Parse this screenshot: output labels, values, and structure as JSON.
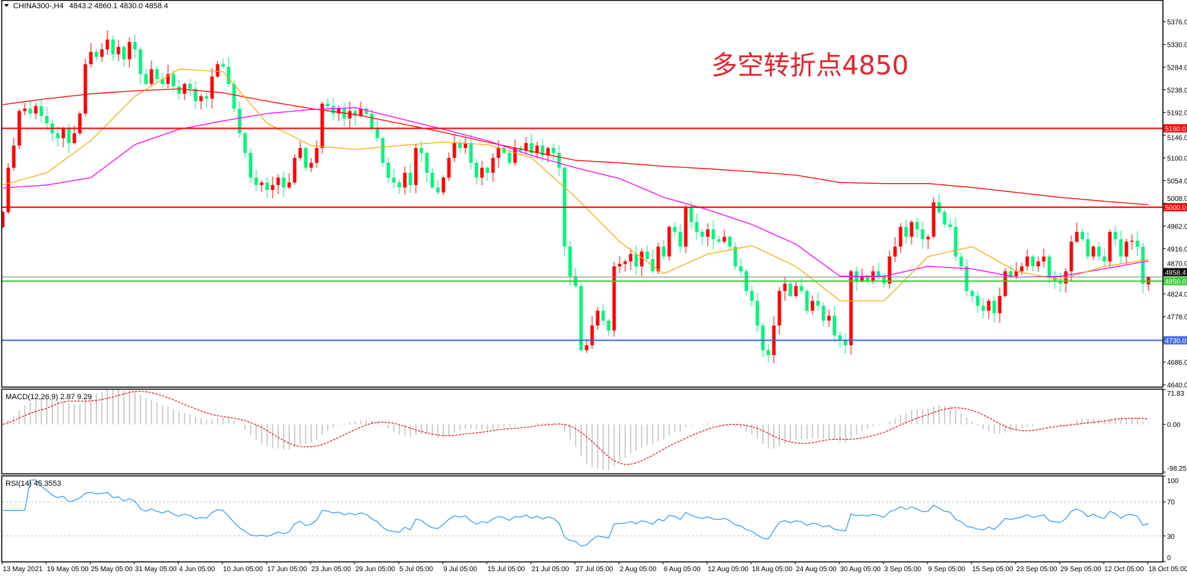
{
  "header": {
    "symbol": "CHINA300-,H4",
    "ohlc": "4843.2 4860.1 4830.0 4858.4",
    "menu_icon": "triangle-down-icon"
  },
  "annotation": {
    "text": "多空转折点4850",
    "color": "#e8222a"
  },
  "colors": {
    "up_candle": "#ff0000",
    "down_candle": "#00f57a",
    "ma_fast": "#ffa500",
    "ma_mid": "#ff00ff",
    "ma_slow": "#ff0000",
    "macd_hist": "#c0c0c0",
    "macd_signal": "#ff0000",
    "rsi": "#1e90ff",
    "bid_line": "#808080"
  },
  "chart_data": [
    {
      "type": "candlestick",
      "timeframe": "H4",
      "last_bar": {
        "open": 4843.2,
        "high": 4860.1,
        "low": 4830.0,
        "close": 4858.4
      },
      "close": [
        4990,
        5080,
        5125,
        5195,
        5200,
        5190,
        5205,
        5185,
        5170,
        5150,
        5140,
        5160,
        5130,
        5150,
        5190,
        5290,
        5315,
        5305,
        5320,
        5340,
        5310,
        5325,
        5300,
        5335,
        5320,
        5270,
        5250,
        5280,
        5260,
        5250,
        5270,
        5245,
        5230,
        5250,
        5240,
        5215,
        5225,
        5220,
        5265,
        5290,
        5285,
        5250,
        5200,
        5150,
        5110,
        5060,
        5045,
        5050,
        5035,
        5045,
        5060,
        5040,
        5050,
        5100,
        5120,
        5080,
        5090,
        5120,
        5210,
        5205,
        5190,
        5200,
        5180,
        5195,
        5185,
        5200,
        5190,
        5160,
        5140,
        5090,
        5060,
        5050,
        5040,
        5070,
        5045,
        5120,
        5110,
        5070,
        5040,
        5030,
        5060,
        5100,
        5130,
        5120,
        5130,
        5090,
        5060,
        5080,
        5070,
        5100,
        5120,
        5110,
        5090,
        5120,
        5115,
        5130,
        5110,
        5125,
        5105,
        5120,
        5110,
        5080,
        4920,
        4860,
        4840,
        4710,
        4720,
        4760,
        4790,
        4770,
        4750,
        4880,
        4885,
        4890,
        4905,
        4880,
        4910,
        4895,
        4870,
        4920,
        4900,
        4960,
        4950,
        4920,
        5000,
        4970,
        4950,
        4940,
        4955,
        4935,
        4930,
        4940,
        4920,
        4880,
        4870,
        4830,
        4810,
        4760,
        4710,
        4700,
        4760,
        4830,
        4845,
        4820,
        4840,
        4830,
        4790,
        4810,
        4800,
        4770,
        4780,
        4740,
        4730,
        4720,
        4870,
        4850,
        4860,
        4850,
        4870,
        4860,
        4845,
        4900,
        4920,
        4960,
        4940,
        4970,
        4955,
        4935,
        4940,
        5010,
        4990,
        4965,
        4960,
        4900,
        4880,
        4830,
        4820,
        4800,
        4790,
        4810,
        4785,
        4820,
        4870,
        4860,
        4870,
        4880,
        4900,
        4880,
        4890,
        4900,
        4860,
        4850,
        4845,
        4870,
        4930,
        4950,
        4935,
        4900,
        4920,
        4900,
        4890,
        4950,
        4935,
        4900,
        4930,
        4932,
        4920,
        4845,
        4858.4
      ],
      "moving_averages_at_ticks": {
        "fast": [
          5045,
          5070,
          5135,
          5225,
          5280,
          5275,
          5170,
          5125,
          5117,
          5125,
          5132,
          5127,
          5100,
          5020,
          4930,
          4865,
          4905,
          4922,
          4880,
          4810,
          4810,
          4900,
          4920,
          4870,
          4853,
          4880,
          4894
        ],
        "mid": [
          5039,
          5045,
          5060,
          5127,
          5158,
          5175,
          5190,
          5198,
          5202,
          5180,
          5158,
          5135,
          5105,
          5080,
          5058,
          5020,
          4995,
          4965,
          4925,
          4860,
          4860,
          4880,
          4875,
          4858,
          4860,
          4875,
          4891
        ],
        "slow": [
          5208,
          5220,
          5230,
          5236,
          5240,
          5232,
          5215,
          5200,
          5188,
          5170,
          5152,
          5132,
          5113,
          5095,
          5090,
          5083,
          5078,
          5072,
          5065,
          5050,
          5048,
          5048,
          5040,
          5030,
          5020,
          5012,
          5005
        ]
      },
      "levels": [
        {
          "value": 5160.0,
          "label": "5160.0",
          "color": "#ff0000"
        },
        {
          "value": 5000.0,
          "label": "5000.0",
          "color": "#ff0000"
        },
        {
          "value": 4850.0,
          "label": "4850.0",
          "color": "#33cc33"
        },
        {
          "value": 4730.0,
          "label": "4730.0",
          "color": "#4169e1"
        }
      ],
      "bid": {
        "value": 4858.4,
        "label": "4858.4"
      },
      "ylim": [
        4640,
        5376
      ],
      "y_ticks": [
        "5376.0",
        "5330.0",
        "5284.0",
        "5238.0",
        "5192.0",
        "5146.0",
        "5100.0",
        "5054.0",
        "5008.0",
        "4962.0",
        "4916.0",
        "4870.0",
        "4824.0",
        "4778.0",
        "4686.0",
        "4640.0"
      ],
      "x_ticks": [
        "13 May 2021",
        "19 May 05:00",
        "25 May 05:00",
        "31 May 05:00",
        "4 Jun 05:00",
        "10 Jun 05:00",
        "17 Jun 05:00",
        "23 Jun 05:00",
        "29 Jun 05:00",
        "5 Jul 05:00",
        "9 Jul 05:00",
        "15 Jul 05:00",
        "21 Jul 05:00",
        "27 Jul 05:00",
        "2 Aug 05:00",
        "6 Aug 05:00",
        "12 Aug 05:00",
        "18 Aug 05:00",
        "24 Aug 05:00",
        "30 Aug 05:00",
        "3 Sep 05:00",
        "9 Sep 05:00",
        "15 Sep 05:00",
        "23 Sep 05:00",
        "29 Sep 05:00",
        "12 Oct 05:00",
        "18 Oct 05:00"
      ]
    },
    {
      "type": "bar+line",
      "title": "MACD(12,26,9) 2.87 9.29",
      "ylim": [
        -98.25,
        71.83
      ],
      "y_ticks": [
        "71.83",
        "0.00",
        "-98.25"
      ]
    },
    {
      "type": "line",
      "title": "RSI(14) 45.3553",
      "ylim": [
        0,
        100
      ],
      "levels": [
        70,
        30
      ],
      "y_ticks": [
        "100",
        "70",
        "30",
        "0"
      ]
    }
  ]
}
